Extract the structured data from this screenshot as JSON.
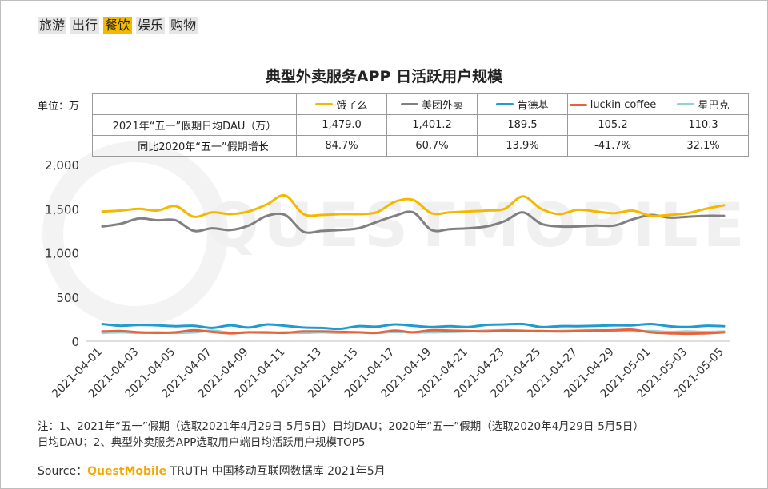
{
  "tabs": [
    {
      "label": "旅游",
      "active": false
    },
    {
      "label": "出行",
      "active": false
    },
    {
      "label": "餐饮",
      "active": true
    },
    {
      "label": "娱乐",
      "active": false
    },
    {
      "label": "购物",
      "active": false
    }
  ],
  "watermark": "QUESTMOBILE",
  "unit_label": "单位：万",
  "table": {
    "row1_label": "2021年“五一”假期日均DAU（万）",
    "row2_label": "同比2020年“五一”假期增长",
    "cols": [
      {
        "name": "饿了么",
        "dau": "1,479.0",
        "growth": "84.7%",
        "color": "#f5b800"
      },
      {
        "name": "美团外卖",
        "dau": "1,401.2",
        "growth": "60.7%",
        "color": "#808080"
      },
      {
        "name": "肯德基",
        "dau": "189.5",
        "growth": "13.9%",
        "color": "#1f9bd1"
      },
      {
        "name": "luckin coffee",
        "dau": "105.2",
        "growth": "-41.7%",
        "color": "#e8623a"
      },
      {
        "name": "星巴克",
        "dau": "110.3",
        "growth": "32.1%",
        "color": "#8fd1d6"
      }
    ]
  },
  "note": {
    "line1": "注：1、2021年“五一”假期（选取2021年4月29日-5月5日）日均DAU；2020年“五一”假期（选取2020年4月29日-5月5日）",
    "line2": "日均DAU；2、典型外卖服务APP选取用户端日均活跃用户规模TOP5"
  },
  "source": {
    "prefix": "Source：",
    "brand": "QuestMobile",
    "suffix": " TRUTH 中国移动互联网数据库 2021年5月"
  },
  "chart_data": {
    "type": "line",
    "title": "典型外卖服务APP 日活跃用户规模",
    "xlabel": "",
    "ylabel": "",
    "ylim": [
      0,
      2000
    ],
    "yticks": [
      0,
      500,
      1000,
      1500,
      2000
    ],
    "yticklabels": [
      "0",
      "500",
      "1,000",
      "1,500",
      "2,000"
    ],
    "x": [
      "2021-04-01",
      "2021-04-02",
      "2021-04-03",
      "2021-04-04",
      "2021-04-05",
      "2021-04-06",
      "2021-04-07",
      "2021-04-08",
      "2021-04-09",
      "2021-04-10",
      "2021-04-11",
      "2021-04-12",
      "2021-04-13",
      "2021-04-14",
      "2021-04-15",
      "2021-04-16",
      "2021-04-17",
      "2021-04-18",
      "2021-04-19",
      "2021-04-20",
      "2021-04-21",
      "2021-04-22",
      "2021-04-23",
      "2021-04-24",
      "2021-04-25",
      "2021-04-26",
      "2021-04-27",
      "2021-04-28",
      "2021-04-29",
      "2021-04-30",
      "2021-05-01",
      "2021-05-02",
      "2021-05-03",
      "2021-05-04",
      "2021-05-05"
    ],
    "xticklabels": [
      "2021-04-01",
      "2021-04-03",
      "2021-04-05",
      "2021-04-07",
      "2021-04-09",
      "2021-04-11",
      "2021-04-13",
      "2021-04-15",
      "2021-04-17",
      "2021-04-19",
      "2021-04-21",
      "2021-04-23",
      "2021-04-25",
      "2021-04-27",
      "2021-04-29",
      "2021-05-01",
      "2021-05-03",
      "2021-05-05"
    ],
    "series": [
      {
        "name": "饿了么",
        "color": "#f5b800",
        "values": [
          1470,
          1480,
          1500,
          1480,
          1530,
          1410,
          1460,
          1440,
          1470,
          1550,
          1650,
          1440,
          1430,
          1440,
          1440,
          1460,
          1580,
          1600,
          1450,
          1460,
          1470,
          1480,
          1500,
          1640,
          1500,
          1440,
          1490,
          1470,
          1450,
          1480,
          1420,
          1430,
          1450,
          1500,
          1540
        ]
      },
      {
        "name": "美团外卖",
        "color": "#808080",
        "values": [
          1300,
          1330,
          1390,
          1370,
          1370,
          1250,
          1280,
          1260,
          1310,
          1420,
          1430,
          1240,
          1250,
          1260,
          1280,
          1350,
          1420,
          1460,
          1260,
          1270,
          1280,
          1300,
          1360,
          1460,
          1330,
          1300,
          1300,
          1310,
          1310,
          1380,
          1430,
          1400,
          1410,
          1420,
          1420
        ]
      },
      {
        "name": "肯德基",
        "color": "#1f9bd1",
        "values": [
          195,
          175,
          185,
          180,
          170,
          175,
          150,
          180,
          155,
          190,
          175,
          155,
          150,
          140,
          170,
          165,
          190,
          175,
          160,
          170,
          160,
          185,
          190,
          195,
          160,
          170,
          170,
          175,
          180,
          180,
          195,
          170,
          160,
          175,
          170
        ]
      },
      {
        "name": "luckin coffee",
        "color": "#e8623a",
        "values": [
          110,
          115,
          100,
          95,
          100,
          125,
          105,
          90,
          100,
          100,
          95,
          110,
          110,
          105,
          100,
          95,
          120,
          100,
          125,
          120,
          115,
          110,
          120,
          115,
          115,
          110,
          115,
          120,
          125,
          130,
          100,
          90,
          85,
          90,
          100
        ]
      },
      {
        "name": "星巴克",
        "color": "#8fd1d6",
        "values": [
          95,
          100,
          95,
          100,
          95,
          100,
          120,
          95,
          100,
          95,
          100,
          95,
          100,
          95,
          100,
          95,
          105,
          100,
          100,
          105,
          110,
          120,
          125,
          120,
          110,
          115,
          120,
          125,
          120,
          110,
          115,
          105,
          110,
          105,
          110
        ]
      }
    ]
  }
}
